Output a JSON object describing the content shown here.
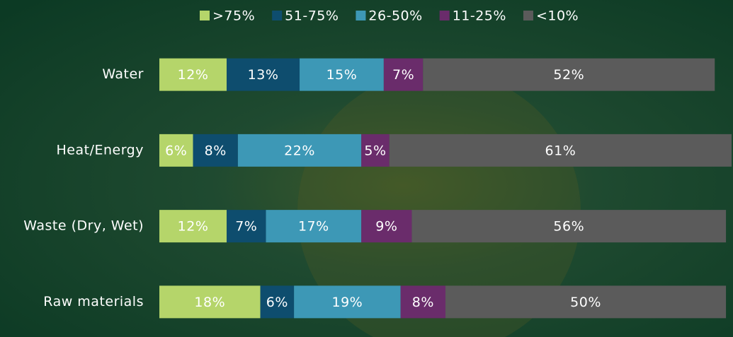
{
  "chart_data": {
    "type": "bar",
    "orientation": "horizontal",
    "stacked": true,
    "legend": "top",
    "categories": [
      "Water",
      "Heat/Energy",
      "Waste (Dry, Wet)",
      "Raw materials"
    ],
    "series": [
      {
        "name": ">75%",
        "color": "#b5d56a",
        "values": [
          12,
          6,
          12,
          18
        ],
        "value_labels": [
          "12%",
          "6%",
          "12%",
          "18%"
        ]
      },
      {
        "name": "51-75%",
        "color": "#0e4d6e",
        "values": [
          13,
          8,
          7,
          6
        ],
        "value_labels": [
          "13%",
          "8%",
          "7%",
          "6%"
        ]
      },
      {
        "name": "26-50%",
        "color": "#3d98b6",
        "values": [
          15,
          22,
          17,
          19
        ],
        "value_labels": [
          "15%",
          "22%",
          "17%",
          "19%"
        ]
      },
      {
        "name": "11-25%",
        "color": "#6a2c6b",
        "values": [
          7,
          5,
          9,
          8
        ],
        "value_labels": [
          "7%",
          "5%",
          "9%",
          "8%"
        ]
      },
      {
        "name": "<10%",
        "color": "#5b5b5b",
        "values": [
          52,
          61,
          56,
          50
        ],
        "value_labels": [
          "52%",
          "61%",
          "56%",
          "50%"
        ]
      }
    ]
  }
}
